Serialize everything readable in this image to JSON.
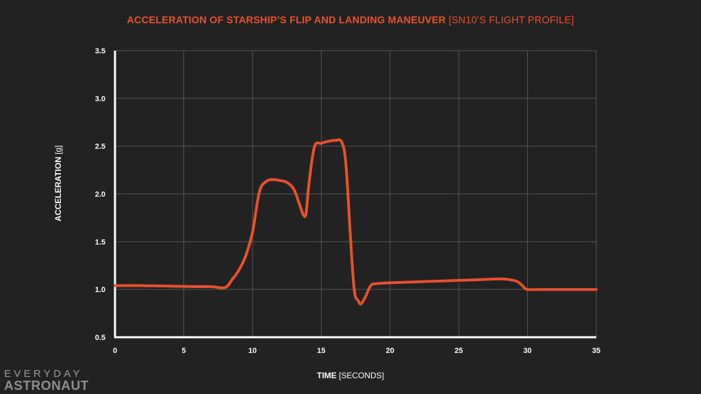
{
  "header": {
    "title_main": "ACCELERATION OF STARSHIP’S FLIP AND LANDING MANEUVER",
    "title_sub": "[SN10’S FLIGHT PROFILE]"
  },
  "axes": {
    "ylabel_main": "ACCELERATION",
    "ylabel_unit": "[g]",
    "xlabel_main": "TIME",
    "xlabel_unit": "[SECONDS]"
  },
  "logo": {
    "line1": "EVERYDAY",
    "line2": "ASTRONAUT"
  },
  "colors": {
    "background": "#222222",
    "line": "#e8522a",
    "grid": "#555555",
    "axis": "#ffffff"
  },
  "chart_data": {
    "type": "line",
    "title": "ACCELERATION OF STARSHIP’S FLIP AND LANDING MANEUVER [SN10’S FLIGHT PROFILE]",
    "xlabel": "TIME [SECONDS]",
    "ylabel": "ACCELERATION [g]",
    "xlim": [
      0,
      35
    ],
    "ylim": [
      0.5,
      3.5
    ],
    "x_ticks": [
      0,
      5,
      10,
      15,
      20,
      25,
      30,
      35
    ],
    "x_tick_labels": [
      "0",
      "5",
      "10",
      "15",
      "20",
      "25",
      "30",
      "35"
    ],
    "y_ticks": [
      0.5,
      1.0,
      1.5,
      2.0,
      2.5,
      3.0,
      3.5
    ],
    "y_tick_labels": [
      "0.5",
      "1.0",
      "1.5",
      "2.0",
      "2.5",
      "3.0",
      "3.5"
    ],
    "grid": true,
    "series": [
      {
        "x": [
          0,
          2,
          4,
          6,
          7,
          8,
          8.5,
          9,
          9.5,
          10,
          10.5,
          11,
          11.5,
          12,
          12.5,
          13,
          13.4,
          13.7,
          13.9,
          14.1,
          14.5,
          15,
          15.5,
          16,
          16.5,
          16.8,
          17.1,
          17.4,
          17.7,
          17.9,
          18.2,
          18.6,
          19,
          20,
          22,
          24,
          26,
          28,
          28.8,
          29.3,
          29.7,
          30,
          31,
          33,
          35
        ],
        "y": [
          1.04,
          1.04,
          1.035,
          1.03,
          1.03,
          1.02,
          1.1,
          1.2,
          1.35,
          1.6,
          2.02,
          2.13,
          2.15,
          2.14,
          2.12,
          2.05,
          1.9,
          1.78,
          1.8,
          2.1,
          2.49,
          2.53,
          2.55,
          2.56,
          2.54,
          2.3,
          1.6,
          1.0,
          0.88,
          0.85,
          0.92,
          1.04,
          1.06,
          1.07,
          1.08,
          1.09,
          1.1,
          1.11,
          1.1,
          1.08,
          1.03,
          1.0,
          1.0,
          1.0,
          1.0
        ]
      }
    ]
  }
}
